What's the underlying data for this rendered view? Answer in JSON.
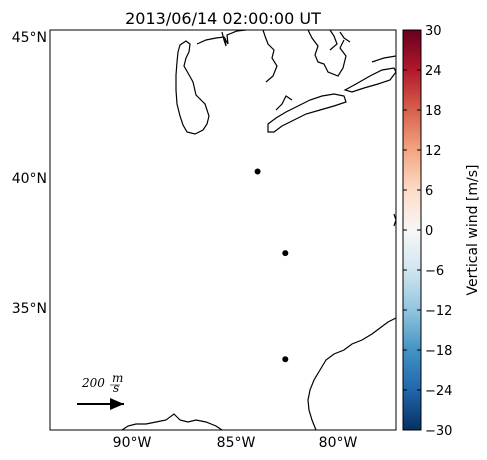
{
  "title": "2013/06/14 02:00:00 UT",
  "map": {
    "lat_labels": [
      "45°N",
      "40°N",
      "35°N"
    ],
    "lon_labels": [
      "90°W",
      "85°W",
      "80°W"
    ],
    "extent": {
      "lon": [
        -93.5,
        -78.5
      ],
      "lat": [
        30.5,
        45.2
      ]
    },
    "stations": [
      {
        "lon": -84.5,
        "lat": 40.0
      },
      {
        "lon": -83.3,
        "lat": 37.0
      },
      {
        "lon": -83.3,
        "lat": 33.1
      }
    ],
    "reference_vector": {
      "label_number": "200",
      "label_unit_num": "m",
      "label_unit_den": "s"
    }
  },
  "colorbar": {
    "label": "Vertical wind [m/s]",
    "range": [
      -30,
      30
    ],
    "ticks": [
      "30",
      "24",
      "18",
      "12",
      "6",
      "0",
      "−6",
      "−12",
      "−18",
      "−24",
      "−30"
    ],
    "colormap": [
      "#67001f",
      "#b2182b",
      "#d6604d",
      "#f4a582",
      "#fddbc7",
      "#f7f7f7",
      "#d1e5f0",
      "#92c5de",
      "#4393c3",
      "#2166ac",
      "#053061"
    ]
  }
}
